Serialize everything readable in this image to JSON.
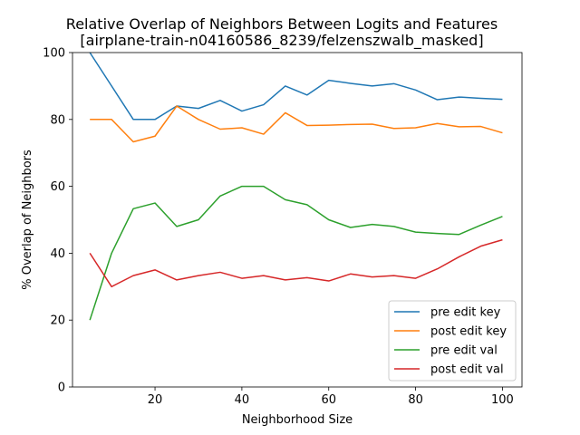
{
  "chart_data": {
    "type": "line",
    "title": "Relative Overlap of Neighbors Between Logits and Features",
    "subtitle": "[airplane-train-n04160586_8239/felzenszwalb_masked]",
    "xlabel": "Neighborhood Size",
    "ylabel": "% Overlap of Neighbors",
    "xlim": [
      1,
      104.5
    ],
    "ylim": [
      0,
      100
    ],
    "xticks": [
      20,
      40,
      60,
      80,
      100
    ],
    "yticks": [
      0,
      20,
      40,
      60,
      80,
      100
    ],
    "grid": false,
    "legend_position": "lower-right",
    "x": [
      5,
      10,
      15,
      20,
      25,
      30,
      35,
      40,
      45,
      50,
      55,
      60,
      65,
      70,
      75,
      80,
      85,
      90,
      95,
      100
    ],
    "series": [
      {
        "name": "pre edit key",
        "color": "#1f77b4",
        "values": [
          100,
          90,
          80,
          80,
          84,
          83.3,
          85.7,
          82.5,
          84.4,
          90,
          87.3,
          91.7,
          90.8,
          90,
          90.7,
          88.8,
          85.9,
          86.7,
          86.3,
          86
        ]
      },
      {
        "name": "post edit key",
        "color": "#ff7f0e",
        "values": [
          80,
          80,
          73.3,
          75,
          84,
          80,
          77.1,
          77.5,
          75.6,
          82,
          78.2,
          78.3,
          78.5,
          78.6,
          77.3,
          77.5,
          78.8,
          77.8,
          77.9,
          76
        ]
      },
      {
        "name": "pre edit val",
        "color": "#2ca02c",
        "values": [
          20,
          40,
          53.3,
          55,
          48,
          50,
          57.1,
          60,
          60,
          56,
          54.5,
          50,
          47.7,
          48.6,
          48,
          46.3,
          45.9,
          45.6,
          48.4,
          51
        ]
      },
      {
        "name": "post edit val",
        "color": "#d62728",
        "values": [
          40,
          30,
          33.3,
          35,
          32,
          33.3,
          34.3,
          32.5,
          33.3,
          32,
          32.7,
          31.7,
          33.8,
          32.9,
          33.3,
          32.5,
          35.3,
          38.9,
          42.1,
          44
        ]
      }
    ]
  }
}
